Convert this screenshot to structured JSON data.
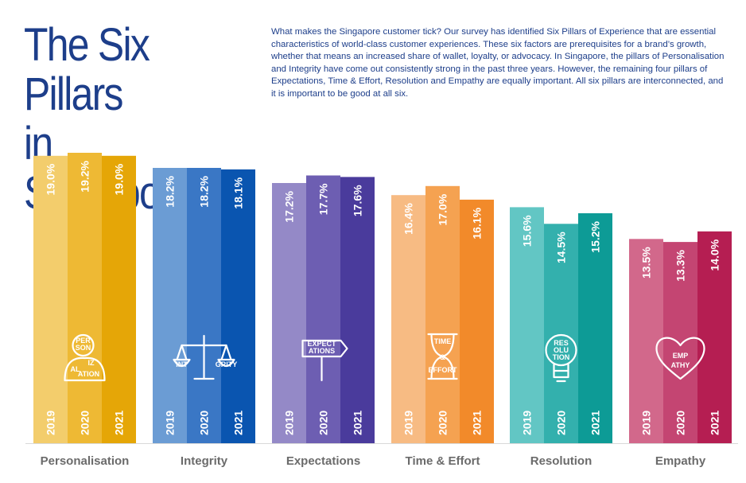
{
  "page": {
    "title_line1": "The Six Pillars",
    "title_line2": "in Singapore",
    "intro": "What makes the Singapore customer tick? Our survey has identified Six Pillars of Experience that are essential characteristics of world-class customer experiences. These six factors are prerequisites for a brand’s growth, whether that means an increased share of wallet, loyalty, or advocacy. In Singapore, the pillars of Personalisation and Integrity have come out consistently strong in the past three years. However, the remaining four pillars of Expectations, Time & Effort, Resolution and Empathy are equally important.  All six pillars are interconnected, and it is important to be good at all six."
  },
  "chart_data": {
    "type": "bar",
    "title": "The Six Pillars in Singapore",
    "xlabel": "",
    "ylabel": "",
    "ylim": [
      0,
      20
    ],
    "grid": false,
    "legend": "none",
    "series_names": [
      "2019",
      "2020",
      "2021"
    ],
    "categories": [
      {
        "name": "Personalisation",
        "icon": "personalisation-icon",
        "icon_text": [
          "PER",
          "SON",
          "AL",
          "IZ",
          "ATION"
        ],
        "colors": [
          "#f3cd6c",
          "#eeb934",
          "#e5a607"
        ],
        "values": [
          19.0,
          19.2,
          19.0
        ],
        "labels": [
          "19.0%",
          "19.2%",
          "19.0%"
        ]
      },
      {
        "name": "Integrity",
        "icon": "integrity-scales-icon",
        "icon_text": [
          "INT",
          "GRITY"
        ],
        "colors": [
          "#6b9cd4",
          "#3a77c5",
          "#0a55b0"
        ],
        "values": [
          18.2,
          18.2,
          18.1
        ],
        "labels": [
          "18.2%",
          "18.2%",
          "18.1%"
        ]
      },
      {
        "name": "Expectations",
        "icon": "expectations-signpost-icon",
        "icon_text": [
          "EXPECT",
          "ATIONS"
        ],
        "colors": [
          "#9489c7",
          "#6d5eb2",
          "#4a3b9c"
        ],
        "values": [
          17.2,
          17.7,
          17.6
        ],
        "labels": [
          "17.2%",
          "17.7%",
          "17.6%"
        ]
      },
      {
        "name": "Time & Effort",
        "icon": "time-effort-hourglass-icon",
        "icon_text": [
          "TIME",
          "&",
          "EFFORT"
        ],
        "colors": [
          "#f7bb83",
          "#f5a251",
          "#f28a2a"
        ],
        "values": [
          16.4,
          17.0,
          16.1
        ],
        "labels": [
          "16.4%",
          "17.0%",
          "16.1%"
        ]
      },
      {
        "name": "Resolution",
        "icon": "resolution-lightbulb-icon",
        "icon_text": [
          "RES",
          "OLU",
          "TION"
        ],
        "colors": [
          "#62c6c4",
          "#33b0ad",
          "#0d9b96"
        ],
        "values": [
          15.6,
          14.5,
          15.2
        ],
        "labels": [
          "15.6%",
          "14.5%",
          "15.2%"
        ]
      },
      {
        "name": "Empathy",
        "icon": "empathy-heart-icon",
        "icon_text": [
          "EMP",
          "ATHY"
        ],
        "colors": [
          "#d2688b",
          "#c44572",
          "#b51e52"
        ],
        "values": [
          13.5,
          13.3,
          14.0
        ],
        "labels": [
          "13.5%",
          "13.3%",
          "14.0%"
        ]
      }
    ]
  }
}
